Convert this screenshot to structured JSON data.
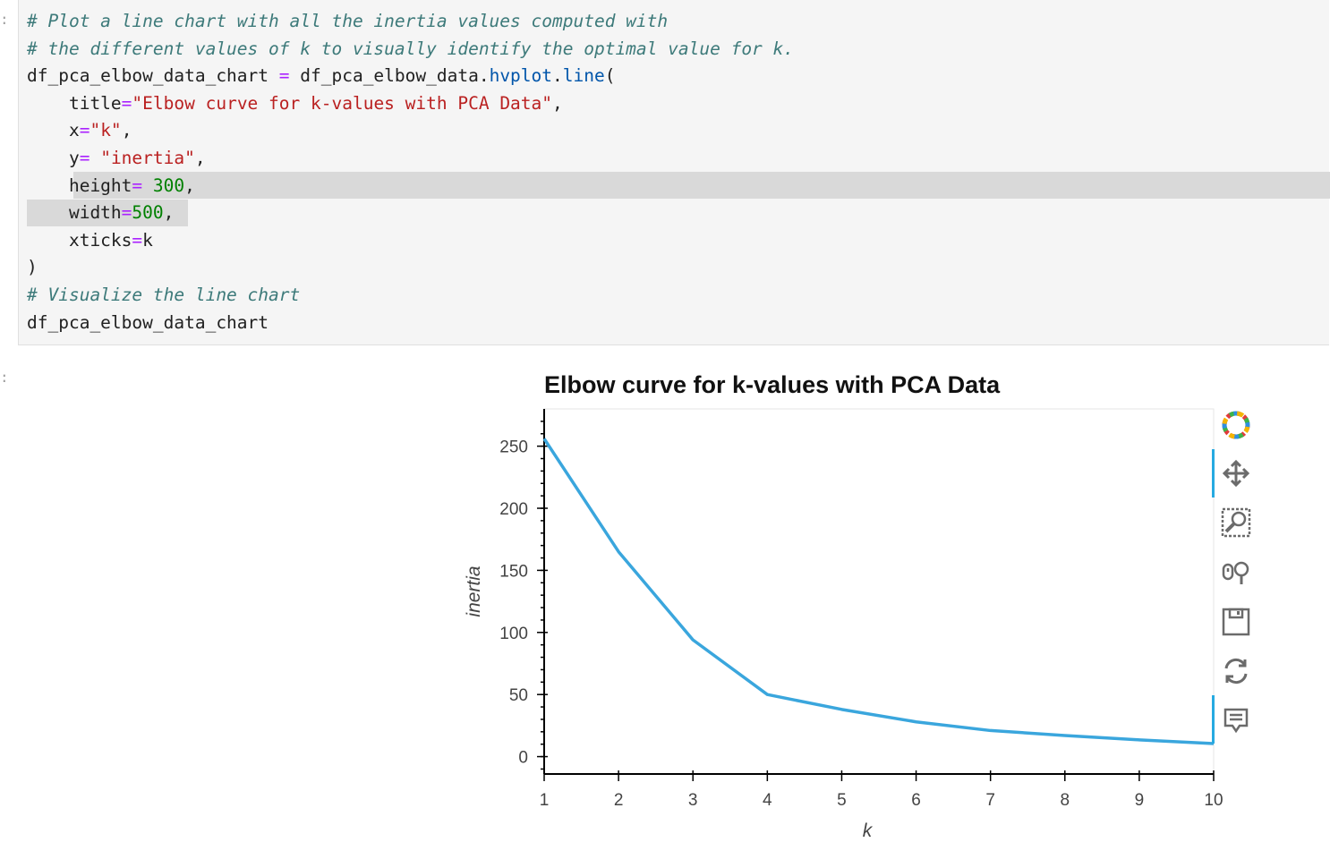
{
  "notebook": {
    "prompt_top": ":",
    "prompt_bottom": ":",
    "code_lines": [
      {
        "type": "comment",
        "text": "# Plot a line chart with all the inertia values computed with"
      },
      {
        "type": "comment",
        "text": "# the different values of k to visually identify the optimal value for k."
      },
      {
        "type": "code",
        "parts": [
          [
            "df_pca_elbow_data_chart ",
            ""
          ],
          [
            "=",
            "op"
          ],
          [
            " df_pca_elbow_data.",
            ""
          ],
          [
            "hvplot",
            "attr"
          ],
          [
            ".",
            ""
          ],
          [
            "line",
            "attr"
          ],
          [
            "(",
            ""
          ]
        ]
      },
      {
        "type": "code",
        "parts": [
          [
            "    title",
            ""
          ],
          [
            "=",
            "op"
          ],
          [
            "\"Elbow curve for k-values with PCA Data\"",
            "str"
          ],
          [
            ",",
            ""
          ]
        ]
      },
      {
        "type": "code",
        "parts": [
          [
            "    x",
            ""
          ],
          [
            "=",
            "op"
          ],
          [
            "\"k\"",
            "str"
          ],
          [
            ",",
            ""
          ]
        ]
      },
      {
        "type": "code",
        "parts": [
          [
            "    y",
            ""
          ],
          [
            "=",
            "op"
          ],
          [
            " ",
            ""
          ],
          [
            "\"inertia\"",
            "str"
          ],
          [
            ",",
            ""
          ]
        ]
      },
      {
        "type": "code",
        "parts": [
          [
            "    height",
            ""
          ],
          [
            "=",
            "op"
          ],
          [
            " ",
            ""
          ],
          [
            "300",
            "num"
          ],
          [
            ",",
            ""
          ]
        ]
      },
      {
        "type": "code",
        "parts": [
          [
            "    width",
            ""
          ],
          [
            "=",
            "op"
          ],
          [
            "500",
            "num"
          ],
          [
            ",",
            ""
          ]
        ]
      },
      {
        "type": "code",
        "parts": [
          [
            "    xticks",
            ""
          ],
          [
            "=",
            "op"
          ],
          [
            "k",
            ""
          ]
        ]
      },
      {
        "type": "code",
        "parts": [
          [
            ")",
            ""
          ]
        ]
      },
      {
        "type": "comment",
        "text": "# Visualize the line chart"
      },
      {
        "type": "code",
        "parts": [
          [
            "df_pca_elbow_data_chart",
            ""
          ]
        ]
      }
    ]
  },
  "chart_data": {
    "type": "line",
    "title": "Elbow curve for k-values with PCA Data",
    "xlabel": "k",
    "ylabel": "inertia",
    "x": [
      1,
      2,
      3,
      4,
      5,
      6,
      7,
      8,
      9,
      10
    ],
    "series": [
      {
        "values": [
          256,
          165,
          94,
          50,
          38,
          28,
          21,
          17,
          13.5,
          10.5
        ]
      }
    ],
    "xlim": [
      1,
      10
    ],
    "ylim": [
      -14,
      280
    ],
    "yticks": [
      0,
      50,
      100,
      150,
      200,
      250
    ],
    "xticks": [
      1,
      2,
      3,
      4,
      5,
      6,
      7,
      8,
      9,
      10
    ],
    "grid": false,
    "color": "#3aa6dd"
  },
  "toolbar": {
    "items": [
      "bokeh-logo-icon",
      "pan-icon",
      "box-zoom-icon",
      "wheel-zoom-icon",
      "save-icon",
      "reset-icon",
      "hover-icon"
    ]
  }
}
